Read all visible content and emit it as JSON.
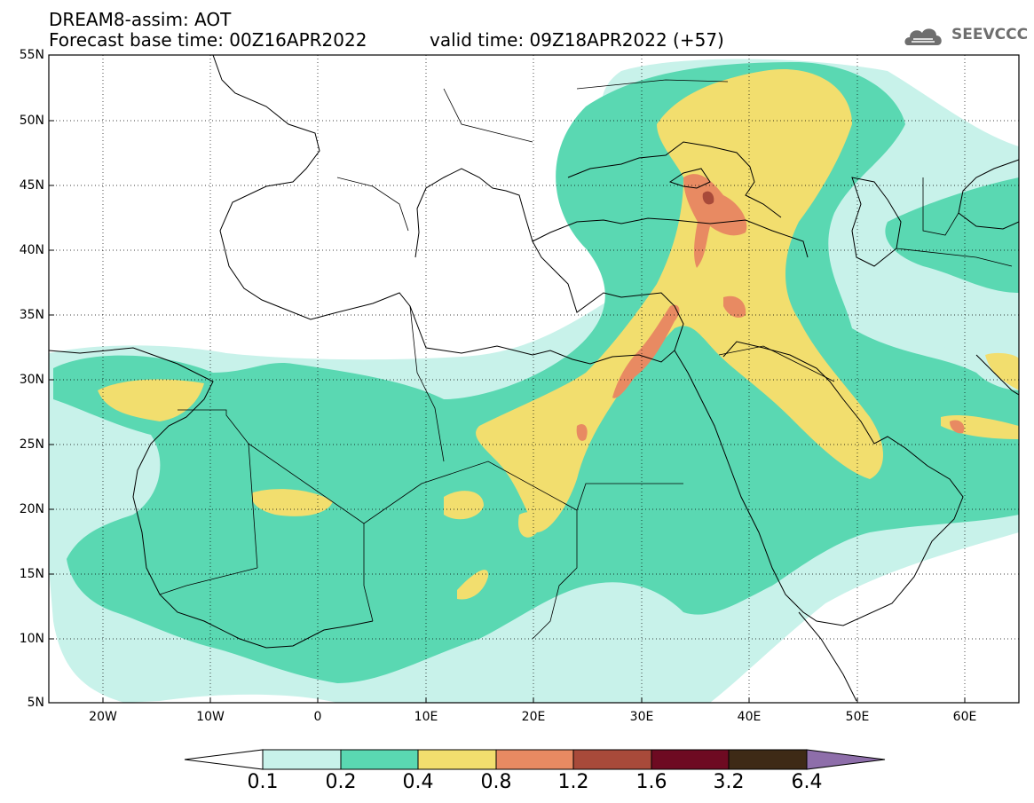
{
  "header": {
    "title": "DREAM8-assim: AOT",
    "base_time": "Forecast base time: 00Z16APR2022",
    "valid_time": "valid time: 09Z18APR2022 (+57)"
  },
  "logo": {
    "text": "SEEVCCC",
    "icon": "cloud-logo-icon"
  },
  "map": {
    "lat_labels": [
      "55N",
      "50N",
      "45N",
      "40N",
      "35N",
      "30N",
      "25N",
      "20N",
      "15N",
      "10N",
      "5N"
    ],
    "lon_labels": [
      "20W",
      "10W",
      "0",
      "10E",
      "20E",
      "30E",
      "40E",
      "50E",
      "60E"
    ],
    "lat_range": [
      5,
      55
    ],
    "lon_range": [
      -25,
      65
    ],
    "gridlines": true
  },
  "colorbar": {
    "labels": [
      "0.1",
      "0.2",
      "0.4",
      "0.8",
      "1.2",
      "1.6",
      "3.2",
      "6.4"
    ],
    "colors": [
      "#c8f2ea",
      "#5ad8b2",
      "#f2de6e",
      "#e88a62",
      "#a84a3a",
      "#6e0a22",
      "#3e2a16",
      "#8e6eaa"
    ]
  }
}
